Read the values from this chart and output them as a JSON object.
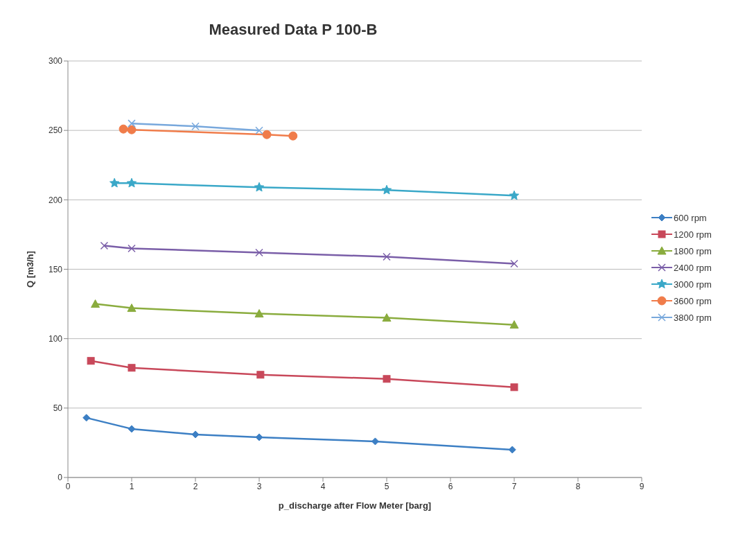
{
  "chart_data": {
    "type": "line",
    "title": "Measured Data P 100-B",
    "xlabel": "p_discharge after Flow Meter [barg]",
    "ylabel": "Q [m3/h]",
    "xlim": [
      0,
      9
    ],
    "xticks": [
      0,
      1,
      2,
      3,
      4,
      5,
      6,
      7,
      8,
      9
    ],
    "ylim": [
      0,
      300
    ],
    "yticks": [
      0,
      50,
      100,
      150,
      200,
      250,
      300
    ],
    "grid": "y",
    "legend": "right",
    "line_style": "solid",
    "series": [
      {
        "name": "600 rpm",
        "color": "#3c7fc4",
        "marker": "diamond",
        "x": [
          0.29,
          1.0,
          2.0,
          3.0,
          4.82,
          6.97
        ],
        "values": [
          43,
          35,
          31,
          29,
          26,
          20
        ]
      },
      {
        "name": "1200 rpm",
        "color": "#c8485a",
        "marker": "square",
        "x": [
          0.36,
          1.0,
          3.02,
          5.0,
          7.0
        ],
        "values": [
          84,
          79,
          74,
          71,
          65
        ]
      },
      {
        "name": "1800 rpm",
        "color": "#8aac3e",
        "marker": "triangle",
        "x": [
          0.43,
          1.0,
          3.0,
          5.0,
          7.0
        ],
        "values": [
          125,
          122,
          118,
          115,
          110
        ]
      },
      {
        "name": "2400 rpm",
        "color": "#7a5ea8",
        "marker": "cross",
        "x": [
          0.57,
          1.0,
          3.0,
          5.0,
          7.0
        ],
        "values": [
          167,
          165,
          162,
          159,
          154
        ]
      },
      {
        "name": "3000 rpm",
        "color": "#3aa8c8",
        "marker": "star",
        "x": [
          0.73,
          1.0,
          3.0,
          5.0,
          7.0
        ],
        "values": [
          212,
          212,
          209,
          207,
          203
        ]
      },
      {
        "name": "3600 rpm",
        "color": "#f07c4a",
        "marker": "circle",
        "x": [
          0.87,
          1.0,
          3.12,
          3.53
        ],
        "values": [
          251,
          250.5,
          247,
          246
        ]
      },
      {
        "name": "3800 rpm",
        "color": "#78a8dc",
        "marker": "cross",
        "x": [
          1.0,
          2.0,
          3.0
        ],
        "values": [
          255,
          253,
          250
        ]
      }
    ]
  }
}
